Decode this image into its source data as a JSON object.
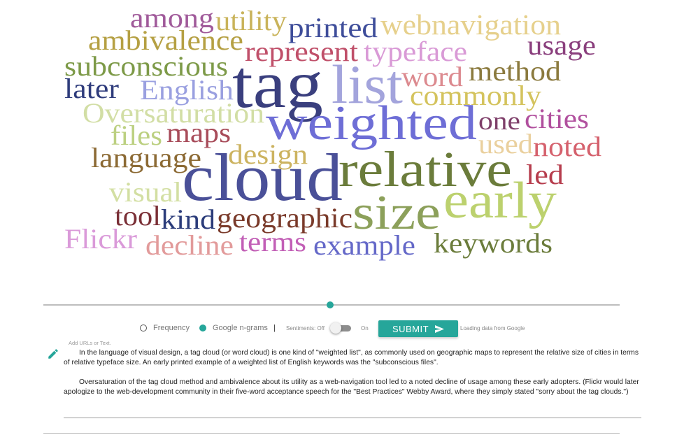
{
  "cloud": {
    "words": [
      {
        "text": "among",
        "color": "#a05a9a"
      },
      {
        "text": "utility",
        "color": "#c9b35a"
      },
      {
        "text": "printed",
        "color": "#3e4d9a"
      },
      {
        "text": "webnavigation",
        "color": "#e6d08c"
      },
      {
        "text": "ambivalence",
        "color": "#b5a043"
      },
      {
        "text": "represent",
        "color": "#c0506a"
      },
      {
        "text": "typeface",
        "color": "#d99ad6"
      },
      {
        "text": "usage",
        "color": "#8a3f7d"
      },
      {
        "text": "subconscious",
        "color": "#7d9a48"
      },
      {
        "text": "tag",
        "color": "#3a3f7e"
      },
      {
        "text": "list",
        "color": "#a3a4dc"
      },
      {
        "text": "word",
        "color": "#dc8a8f"
      },
      {
        "text": "method",
        "color": "#8b7a3e"
      },
      {
        "text": "later",
        "color": "#2f3c7c"
      },
      {
        "text": "English",
        "color": "#9aa0e0"
      },
      {
        "text": "commonly",
        "color": "#d4c35d"
      },
      {
        "text": "Oversaturation",
        "color": "#d2dea5"
      },
      {
        "text": "weighted",
        "color": "#6e6ed6"
      },
      {
        "text": "one",
        "color": "#7f3f6a"
      },
      {
        "text": "cities",
        "color": "#b1509e"
      },
      {
        "text": "files",
        "color": "#bcd081"
      },
      {
        "text": "maps",
        "color": "#a84c5a"
      },
      {
        "text": "used",
        "color": "#ead09e"
      },
      {
        "text": "noted",
        "color": "#d5616d"
      },
      {
        "text": "language",
        "color": "#8c6a34"
      },
      {
        "text": "design",
        "color": "#ccb360"
      },
      {
        "text": "cloud",
        "color": "#4a5098"
      },
      {
        "text": "relative",
        "color": "#6b7c3b"
      },
      {
        "text": "led",
        "color": "#b63d4d"
      },
      {
        "text": "visual",
        "color": "#d3dfa3"
      },
      {
        "text": "early",
        "color": "#bcd16e"
      },
      {
        "text": "size",
        "color": "#8ca05a"
      },
      {
        "text": "tool",
        "color": "#7a2f36"
      },
      {
        "text": "kind",
        "color": "#2b3c7a"
      },
      {
        "text": "geographic",
        "color": "#7a3a2a"
      },
      {
        "text": "Flickr",
        "color": "#da9ad9"
      },
      {
        "text": "decline",
        "color": "#e29b9b"
      },
      {
        "text": "terms",
        "color": "#c25fb6"
      },
      {
        "text": "example",
        "color": "#6468c8"
      },
      {
        "text": "keywords",
        "color": "#6b7c3b"
      }
    ]
  },
  "slider": {
    "value_percent": 50
  },
  "options": {
    "frequency_label": "Frequency",
    "ngrams_label": "Google n-grams",
    "separator": "|",
    "sentiments_off_label": "Sentiments: Off",
    "sentiments_on_label": "On",
    "submit_label": "SUBMIT",
    "loading_text": "Loading data from Google"
  },
  "input": {
    "label": "Add URLs or Text.",
    "paragraph1": "In the language of visual design, a tag cloud (or word cloud) is one kind of \"weighted list\", as commonly used on geographic maps to represent the relative size of cities in terms of relative typeface size. An early printed example of a weighted list of English keywords was the \"subconscious files\".",
    "paragraph2": "Oversaturation of the tag cloud method and ambivalence about its utility as a web-navigation tool led to a noted decline of usage among these early adopters. (Flickr would later apologize to the web-development community in their five-word acceptance speech for the \"Best Practices\" Webby Award, where they simply stated \"sorry about the tag clouds.\")"
  },
  "colors": {
    "accent": "#26a69a"
  }
}
